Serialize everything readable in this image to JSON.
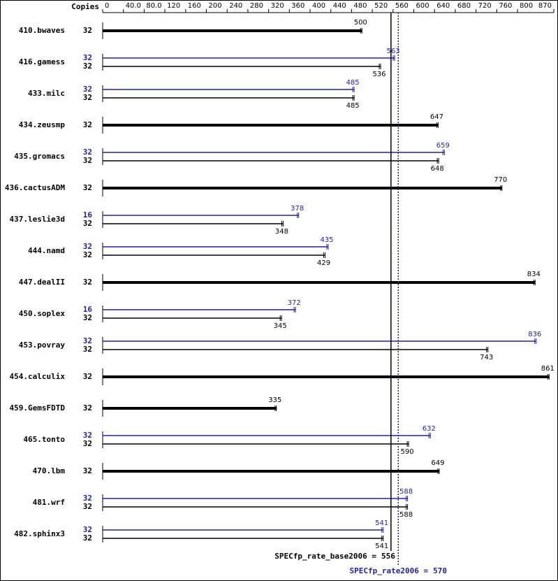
{
  "chart_data": {
    "type": "spec-bar",
    "copies_header": "Copies",
    "xlim": [
      0,
      870
    ],
    "xticks": [
      0,
      {
        "value": 40,
        "label": "40.0"
      },
      {
        "value": 80,
        "label": "80.0"
      },
      120,
      160,
      200,
      240,
      280,
      320,
      360,
      400,
      440,
      480,
      520,
      560,
      600,
      640,
      680,
      720,
      760,
      800,
      870
    ],
    "base_color": "#000000",
    "peak_color": "#22229a",
    "benchmarks": [
      {
        "name": "410.bwaves",
        "base_copies": 32,
        "base": 500
      },
      {
        "name": "416.gamess",
        "peak_copies": 32,
        "peak": 563,
        "base_copies": 32,
        "base": 536
      },
      {
        "name": "433.milc",
        "peak_copies": 32,
        "peak": 485,
        "base_copies": 32,
        "base": 485
      },
      {
        "name": "434.zeusmp",
        "base_copies": 32,
        "base": 647
      },
      {
        "name": "435.gromacs",
        "peak_copies": 32,
        "peak": 659,
        "base_copies": 32,
        "base": 648
      },
      {
        "name": "436.cactusADM",
        "base_copies": 32,
        "base": 770
      },
      {
        "name": "437.leslie3d",
        "peak_copies": 16,
        "peak": 378,
        "base_copies": 32,
        "base": 348
      },
      {
        "name": "444.namd",
        "peak_copies": 32,
        "peak": 435,
        "base_copies": 32,
        "base": 429
      },
      {
        "name": "447.dealII",
        "base_copies": 32,
        "base": 834
      },
      {
        "name": "450.soplex",
        "peak_copies": 16,
        "peak": 372,
        "base_copies": 32,
        "base": 345
      },
      {
        "name": "453.povray",
        "peak_copies": 32,
        "peak": 836,
        "base_copies": 32,
        "base": 743
      },
      {
        "name": "454.calculix",
        "base_copies": 32,
        "base": 861
      },
      {
        "name": "459.GemsFDTD",
        "base_copies": 32,
        "base": 335
      },
      {
        "name": "465.tonto",
        "peak_copies": 32,
        "peak": 632,
        "base_copies": 32,
        "base": 590
      },
      {
        "name": "470.lbm",
        "base_copies": 32,
        "base": 649
      },
      {
        "name": "481.wrf",
        "peak_copies": 32,
        "peak": 588,
        "base_copies": 32,
        "base": 588
      },
      {
        "name": "482.sphinx3",
        "peak_copies": 32,
        "peak": 541,
        "base_copies": 32,
        "base": 541
      }
    ],
    "base_metric_label": "SPECfp_rate_base2006 =",
    "base_metric": 556,
    "peak_metric_label": "SPECfp_rate2006 =",
    "peak_metric": 570
  }
}
